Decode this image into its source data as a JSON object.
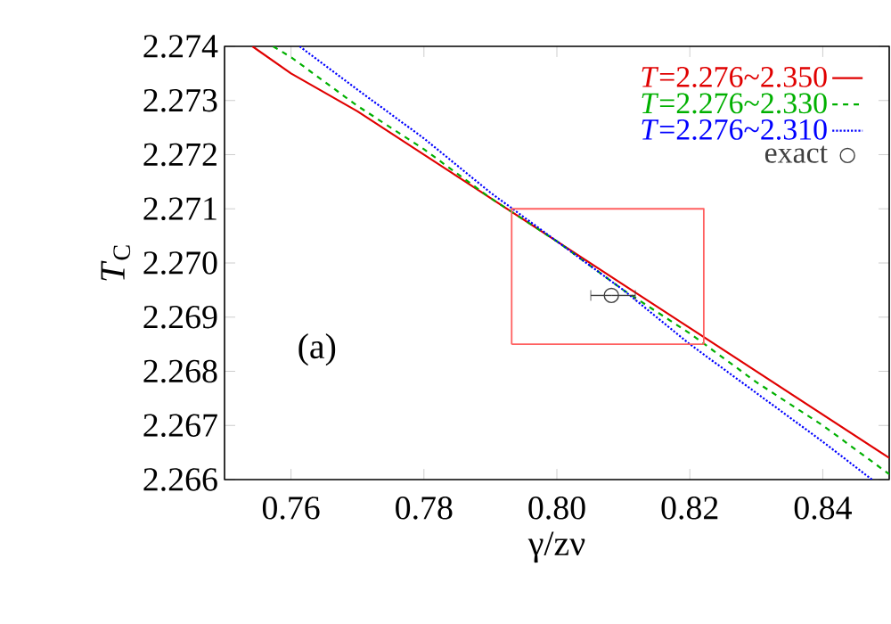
{
  "chart_data": {
    "type": "line",
    "xlabel": "γ/zν",
    "ylabel": "*T*$_{C}$",
    "xlim": [
      0.75,
      0.85
    ],
    "ylim": [
      2.266,
      2.274
    ],
    "xticks": [
      0.76,
      0.78,
      {
        "value": 0.8,
        "label": "0.80"
      },
      0.82,
      0.84
    ],
    "yticks": [
      2.266,
      2.267,
      2.268,
      2.269,
      {
        "value": 2.27,
        "label": "2.270"
      },
      2.271,
      2.272,
      2.273,
      2.274
    ],
    "grid": false,
    "legend": "top right",
    "marker": "none",
    "annotations": [
      "(a)"
    ],
    "series": [
      {
        "name": "*T*=2.276~2.350",
        "color": "#e00000",
        "line_style": "solid",
        "x": [
          0.7542,
          0.76,
          0.77,
          0.78,
          0.79,
          0.8,
          0.81,
          0.82,
          0.83,
          0.84,
          0.85
        ],
        "values": [
          2.274,
          2.2735,
          2.2728,
          2.272,
          2.2712,
          2.2704,
          2.2696,
          2.2688,
          2.268,
          2.2672,
          2.2664
        ]
      },
      {
        "name": "*T*=2.276~2.330",
        "color": "#00b000",
        "line_style": "dashed",
        "x": [
          0.7573,
          0.76,
          0.77,
          0.78,
          0.79,
          0.8,
          0.81,
          0.82,
          0.83,
          0.84,
          0.85
        ],
        "values": [
          2.274,
          2.2738,
          2.2729,
          2.2721,
          2.2712,
          2.2704,
          2.2695,
          2.2687,
          2.2678,
          2.267,
          2.2661
        ]
      },
      {
        "name": "*T*=2.276~2.310",
        "color": "#0000ff",
        "line_style": "dotted",
        "x": [
          0.7613,
          0.77,
          0.78,
          0.79,
          0.8,
          0.81,
          0.82,
          0.83,
          0.84,
          0.8474
        ],
        "values": [
          2.274,
          2.2732,
          2.2723,
          2.2713,
          2.2704,
          2.2695,
          2.2685,
          2.2676,
          2.2667,
          2.266
        ]
      },
      {
        "name": "exact",
        "color": "#404040",
        "type": "scatter",
        "marker": "circle",
        "x": [
          0.8082
        ],
        "values": [
          2.2694
        ],
        "xerrors": [
          [
            0.8051,
            0.8118
          ]
        ]
      },
      {
        "color": "#ff6060",
        "line_style": "solid",
        "x": [
          0.7932,
          0.7932,
          0.8221,
          0.8221
        ],
        "values": [
          2.2685,
          2.271,
          2.271,
          2.2685
        ]
      },
      {
        "color": "#ff6060",
        "line_style": "solid",
        "x": [
          0.7932,
          0.8221
        ],
        "values": [
          2.2685,
          2.2685
        ]
      }
    ]
  }
}
